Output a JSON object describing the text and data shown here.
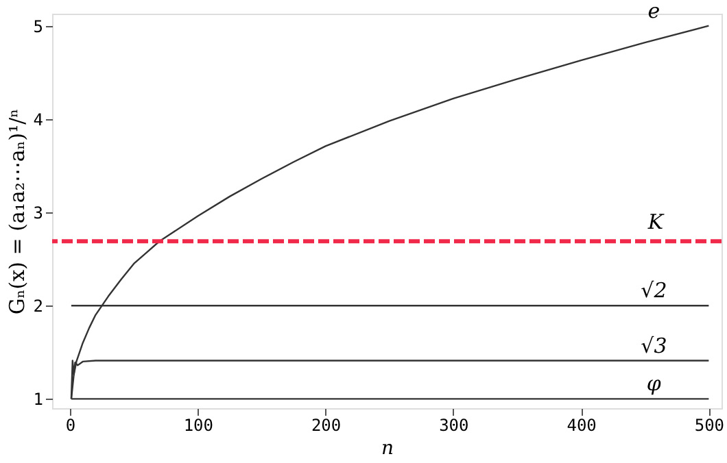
{
  "chart_data": {
    "type": "line",
    "xlabel": "n",
    "ylabel": "Gₙ(x) = (a₁a₂⋯aₙ)¹/ⁿ",
    "xlim": [
      -14,
      510
    ],
    "ylim": [
      0.9,
      5.13
    ],
    "xticks": [
      0,
      100,
      200,
      300,
      400,
      500
    ],
    "yticks": [
      1,
      2,
      3,
      4,
      5
    ],
    "grid": false,
    "line_style": "solid",
    "series": [
      {
        "name": "e",
        "color": "#333333",
        "x": [
          1,
          3,
          5,
          10,
          15,
          20,
          30,
          40,
          50,
          60,
          70,
          80,
          100,
          125,
          150,
          175,
          200,
          250,
          300,
          350,
          400,
          450,
          500
        ],
        "values": [
          1,
          1.26,
          1.4,
          1.6,
          1.76,
          1.9,
          2.1,
          2.28,
          2.45,
          2.57,
          2.69,
          2.78,
          2.96,
          3.17,
          3.36,
          3.54,
          3.71,
          3.98,
          4.22,
          4.43,
          4.63,
          4.82,
          5.0
        ]
      },
      {
        "name": "√2",
        "color": "#333333",
        "x": [
          1,
          500
        ],
        "values": [
          2,
          2
        ]
      },
      {
        "name": "√3",
        "color": "#333333",
        "x": [
          1,
          2,
          3,
          4,
          6,
          10,
          20,
          500
        ],
        "values": [
          1,
          1.41,
          1.26,
          1.39,
          1.36,
          1.4,
          1.41,
          1.41
        ]
      },
      {
        "name": "φ",
        "color": "#333333",
        "x": [
          1,
          500
        ],
        "values": [
          1,
          1
        ]
      }
    ],
    "ref_lines": [
      {
        "axis": "y",
        "value": 2.69,
        "label": "K",
        "color": "#f0284a",
        "line_style": "dashed"
      }
    ]
  }
}
